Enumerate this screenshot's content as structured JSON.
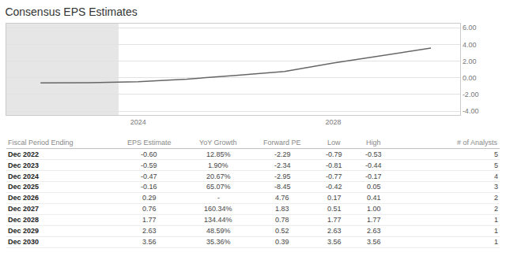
{
  "chart_data": {
    "type": "line",
    "title": "Consensus EPS Estimates",
    "x": [
      2022,
      2023,
      2024,
      2025,
      2026,
      2027,
      2028,
      2029,
      2030
    ],
    "values": [
      -0.6,
      -0.59,
      -0.47,
      -0.16,
      0.29,
      0.76,
      1.77,
      2.63,
      3.56
    ],
    "color": "#666666",
    "xlim": [
      2021.3,
      2030.6
    ],
    "xticks": [
      2024,
      2028
    ],
    "ylim": [
      -4.5,
      6.5
    ],
    "yticks": [
      {
        "value": -4,
        "label": "-4.00"
      },
      {
        "value": -2,
        "label": "-2.00"
      },
      {
        "value": 0,
        "label": "0.00"
      },
      {
        "value": 2,
        "label": "2.00"
      },
      {
        "value": 4,
        "label": "4.00"
      },
      {
        "value": 6,
        "label": "6.00"
      }
    ],
    "grid": true,
    "shaded": {
      "x": [
        2021.3,
        2023.6
      ],
      "color": "#e6e6e6"
    },
    "table": {
      "columns": [
        "Fiscal Period Ending",
        "EPS Estimate",
        "YoY Growth",
        "Forward PE",
        "Low",
        "High",
        "# of Analysts"
      ],
      "rows": [
        [
          "Dec 2022",
          "-0.60",
          "12.85%",
          "-2.29",
          "-0.79",
          "-0.53",
          "5"
        ],
        [
          "Dec 2023",
          "-0.59",
          "1.90%",
          "-2.34",
          "-0.81",
          "-0.44",
          "5"
        ],
        [
          "Dec 2024",
          "-0.47",
          "20.67%",
          "-2.95",
          "-0.77",
          "-0.17",
          "4"
        ],
        [
          "Dec 2025",
          "-0.16",
          "65.07%",
          "-8.45",
          "-0.42",
          "0.05",
          "3"
        ],
        [
          "Dec 2026",
          "0.29",
          "-",
          "4.76",
          "0.17",
          "0.41",
          "2"
        ],
        [
          "Dec 2027",
          "0.76",
          "160.34%",
          "1.83",
          "0.51",
          "1.00",
          "2"
        ],
        [
          "Dec 2028",
          "1.77",
          "134.44%",
          "0.78",
          "1.77",
          "1.77",
          "1"
        ],
        [
          "Dec 2029",
          "2.63",
          "48.59%",
          "0.52",
          "2.63",
          "2.63",
          "1"
        ],
        [
          "Dec 2030",
          "3.56",
          "35.36%",
          "0.39",
          "3.56",
          "3.56",
          "1"
        ]
      ]
    }
  }
}
